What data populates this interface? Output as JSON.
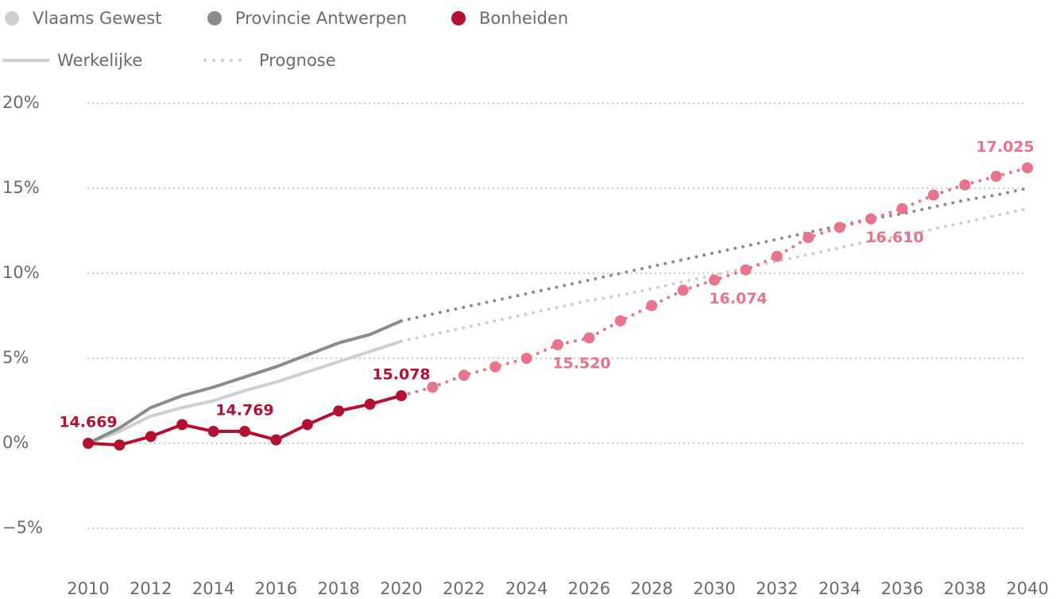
{
  "chart_data": {
    "type": "line",
    "x": [
      2010,
      2011,
      2012,
      2013,
      2014,
      2015,
      2016,
      2017,
      2018,
      2019,
      2020,
      2021,
      2022,
      2023,
      2024,
      2025,
      2026,
      2027,
      2028,
      2029,
      2030,
      2031,
      2032,
      2033,
      2034,
      2035,
      2036,
      2037,
      2038,
      2039,
      2040
    ],
    "xlim": [
      2010,
      2040
    ],
    "xticks": [
      2010,
      2012,
      2014,
      2016,
      2018,
      2020,
      2022,
      2024,
      2026,
      2028,
      2030,
      2032,
      2034,
      2036,
      2038,
      2040
    ],
    "ylim": [
      -5,
      20
    ],
    "yticks": [
      {
        "value": 20,
        "label": "20%"
      },
      {
        "value": 15,
        "label": "15%"
      },
      {
        "value": 10,
        "label": "10%"
      },
      {
        "value": 5,
        "label": "5%"
      },
      {
        "value": 0,
        "label": "0%"
      },
      {
        "value": -5,
        "label": "−5%"
      }
    ],
    "grid": true,
    "forecast_start": 2020,
    "line_styles": [
      {
        "label": "Werkelijke",
        "style": "solid"
      },
      {
        "label": "Prognose",
        "style": "dotted"
      }
    ],
    "series": [
      {
        "name": "Vlaams Gewest",
        "color": "#cfcfcf",
        "markers": false,
        "values": [
          0,
          0.7,
          1.6,
          2.1,
          2.5,
          3.1,
          3.6,
          4.2,
          4.8,
          5.4,
          6.0,
          6.4,
          6.8,
          7.2,
          7.6,
          8.0,
          8.4,
          8.7,
          9.1,
          9.5,
          9.9,
          10.3,
          10.7,
          11.1,
          11.5,
          11.9,
          12.2,
          12.6,
          13.0,
          13.4,
          13.8
        ]
      },
      {
        "name": "Provincie Antwerpen",
        "color": "#8a8b8d",
        "markers": false,
        "values": [
          0,
          0.9,
          2.1,
          2.8,
          3.3,
          3.9,
          4.5,
          5.2,
          5.9,
          6.4,
          7.2,
          7.6,
          8.0,
          8.4,
          8.8,
          9.2,
          9.6,
          10.0,
          10.4,
          10.8,
          11.2,
          11.6,
          12.0,
          12.4,
          12.8,
          13.2,
          13.5,
          13.9,
          14.3,
          14.6,
          15.0
        ]
      },
      {
        "name": "Bonheiden",
        "color": "#b5102f",
        "forecast_color": "#e8738b",
        "markers": true,
        "values": [
          0,
          -0.1,
          0.4,
          1.1,
          0.7,
          0.7,
          0.2,
          1.1,
          1.9,
          2.3,
          2.8,
          3.3,
          4.0,
          4.5,
          5.0,
          5.8,
          6.2,
          7.2,
          8.1,
          9.0,
          9.6,
          10.2,
          11.0,
          12.1,
          12.7,
          13.2,
          13.8,
          14.6,
          15.2,
          15.7,
          16.2
        ],
        "annotations": [
          {
            "x": 2010,
            "label": "14.669"
          },
          {
            "x": 2015,
            "label": "14.769"
          },
          {
            "x": 2020,
            "label": "15.078"
          },
          {
            "x": 2025,
            "label": "15.520"
          },
          {
            "x": 2030,
            "label": "16.074"
          },
          {
            "x": 2035,
            "label": "16.610"
          },
          {
            "x": 2040,
            "label": "17.025"
          }
        ]
      }
    ]
  }
}
